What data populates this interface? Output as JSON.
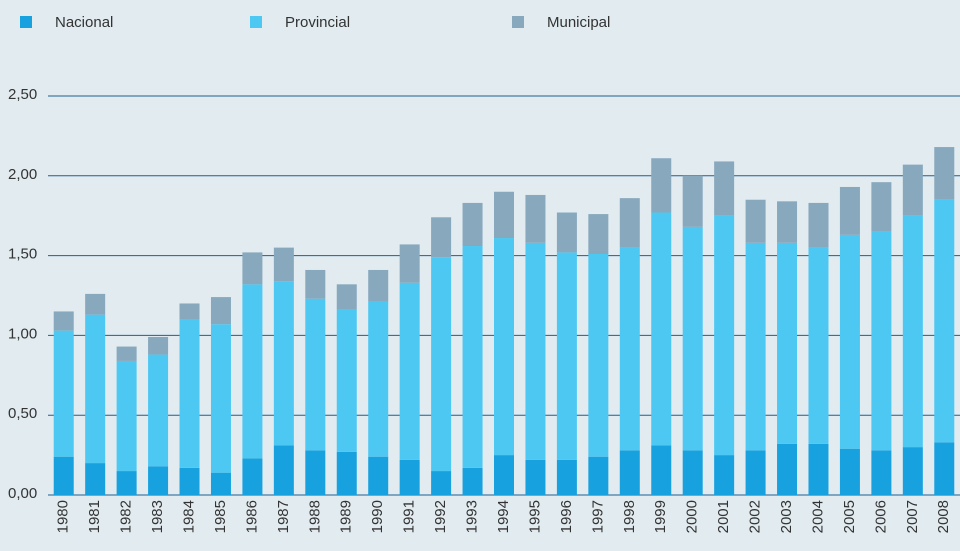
{
  "chart_data": {
    "type": "stacked_bar",
    "categories": [
      "1980",
      "1981",
      "1982",
      "1983",
      "1984",
      "1985",
      "1986",
      "1987",
      "1988",
      "1989",
      "1990",
      "1991",
      "1992",
      "1993",
      "1994",
      "1995",
      "1996",
      "1997",
      "1998",
      "1999",
      "2000",
      "2001",
      "2002",
      "2003",
      "2004",
      "2005",
      "2006",
      "2007",
      "2008"
    ],
    "series": [
      {
        "name": "Nacional",
        "color": "#17a2df",
        "values": [
          0.24,
          0.2,
          0.15,
          0.18,
          0.17,
          0.14,
          0.23,
          0.31,
          0.28,
          0.27,
          0.24,
          0.22,
          0.15,
          0.17,
          0.25,
          0.22,
          0.22,
          0.24,
          0.28,
          0.31,
          0.28,
          0.25,
          0.28,
          0.32,
          0.32,
          0.29,
          0.28,
          0.3,
          0.33
        ]
      },
      {
        "name": "Provincial",
        "color": "#4dc8f2",
        "values": [
          0.79,
          0.93,
          0.69,
          0.7,
          0.93,
          0.93,
          1.09,
          1.03,
          0.95,
          0.89,
          0.97,
          1.11,
          1.34,
          1.39,
          1.36,
          1.36,
          1.3,
          1.27,
          1.27,
          1.46,
          1.4,
          1.5,
          1.3,
          1.26,
          1.23,
          1.34,
          1.37,
          1.45,
          1.52
        ]
      },
      {
        "name": "Municipal",
        "color": "#87a8bd",
        "values": [
          0.12,
          0.13,
          0.09,
          0.11,
          0.1,
          0.17,
          0.2,
          0.21,
          0.18,
          0.16,
          0.2,
          0.24,
          0.25,
          0.27,
          0.29,
          0.3,
          0.25,
          0.25,
          0.31,
          0.34,
          0.32,
          0.34,
          0.27,
          0.26,
          0.28,
          0.3,
          0.31,
          0.32,
          0.33
        ]
      }
    ],
    "ylim": [
      0,
      2.5
    ],
    "yticks": [
      {
        "value": 0,
        "label": "0,00"
      },
      {
        "value": 0.5,
        "label": "0,50"
      },
      {
        "value": 1,
        "label": "1,00"
      },
      {
        "value": 1.5,
        "label": "1,50"
      },
      {
        "value": 2,
        "label": "2,00"
      },
      {
        "value": 2.5,
        "label": "2,50"
      }
    ],
    "grid": true
  }
}
